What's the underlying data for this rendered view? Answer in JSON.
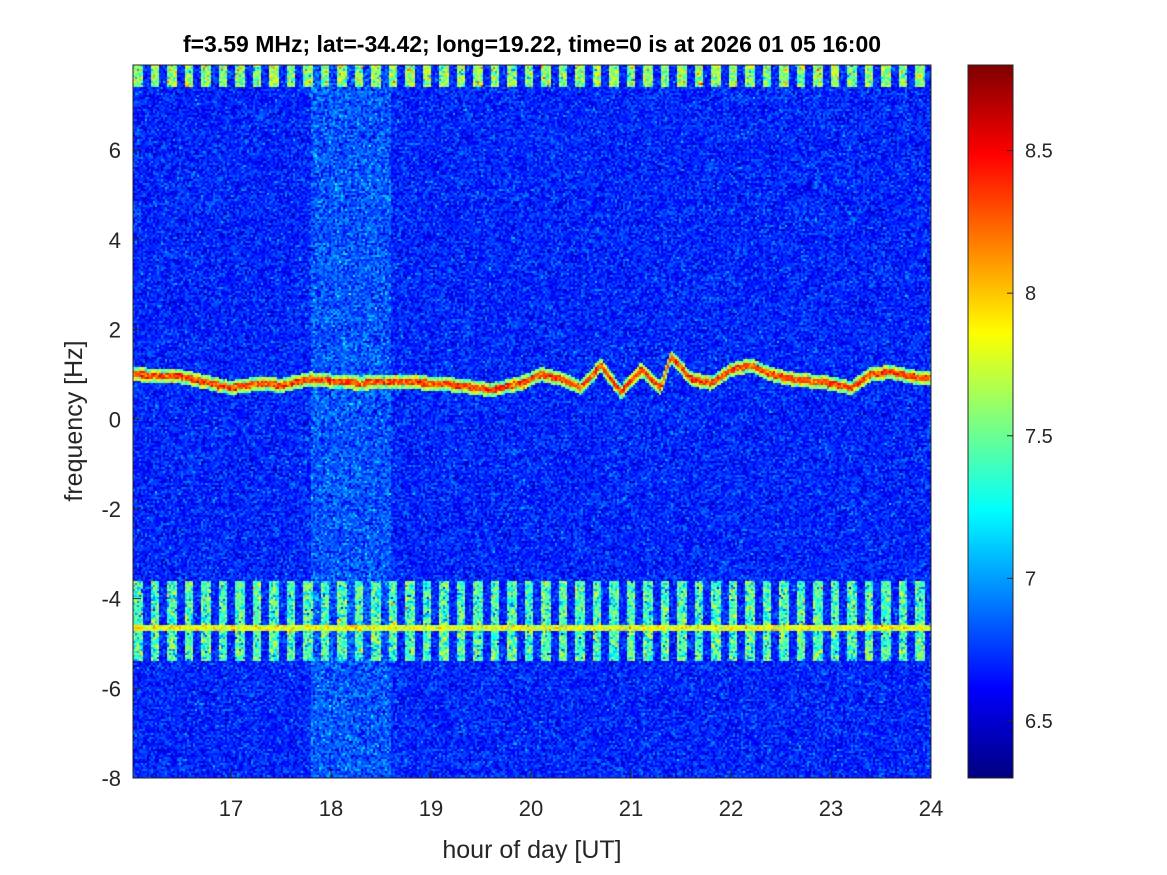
{
  "chart_data": {
    "type": "heatmap",
    "title": "f=3.59 MHz;  lat=-34.42; long=19.22, time=0 is at 2026 01 05 16:00",
    "xlabel": "hour of day [UT]",
    "ylabel": "frequency [Hz]",
    "xlim": [
      16.02,
      24
    ],
    "ylim": [
      -8,
      7.9
    ],
    "x_ticks": [
      17,
      18,
      19,
      20,
      21,
      22,
      23,
      24
    ],
    "y_ticks": [
      -8,
      -6,
      -4,
      -2,
      0,
      2,
      4,
      6
    ],
    "colorbar": {
      "colormap": "jet",
      "clim": [
        6.3,
        8.8
      ],
      "ticks": [
        6.5,
        7,
        7.5,
        8,
        8.5
      ]
    },
    "background_level": 6.7,
    "features": {
      "doppler_trace": {
        "x": [
          16.0,
          16.5,
          17.0,
          17.3,
          17.5,
          17.8,
          18.0,
          18.3,
          18.6,
          19.0,
          19.3,
          19.6,
          19.9,
          20.1,
          20.3,
          20.5,
          20.7,
          20.9,
          21.1,
          21.3,
          21.4,
          21.6,
          21.8,
          22.0,
          22.2,
          22.4,
          22.6,
          22.8,
          23.0,
          23.2,
          23.4,
          23.6,
          23.8,
          24.0
        ],
        "y": [
          1.0,
          0.95,
          0.7,
          0.8,
          0.75,
          0.9,
          0.85,
          0.8,
          0.85,
          0.8,
          0.75,
          0.65,
          0.8,
          1.0,
          0.9,
          0.7,
          1.2,
          0.6,
          1.1,
          0.7,
          1.4,
          0.9,
          0.8,
          1.1,
          1.2,
          1.0,
          0.9,
          0.85,
          0.8,
          0.7,
          1.0,
          1.05,
          0.95,
          0.9
        ],
        "level": 8.3
      },
      "band_upper": {
        "y": [
          7.4,
          7.9
        ],
        "level": 7.6
      },
      "band_lower": {
        "y": [
          -5.4,
          -3.6
        ],
        "level": 7.4
      },
      "line_lower": {
        "y": -4.65,
        "level": 7.8
      },
      "enhanced_column": {
        "x": [
          17.8,
          18.6
        ],
        "level": 6.95
      }
    }
  }
}
